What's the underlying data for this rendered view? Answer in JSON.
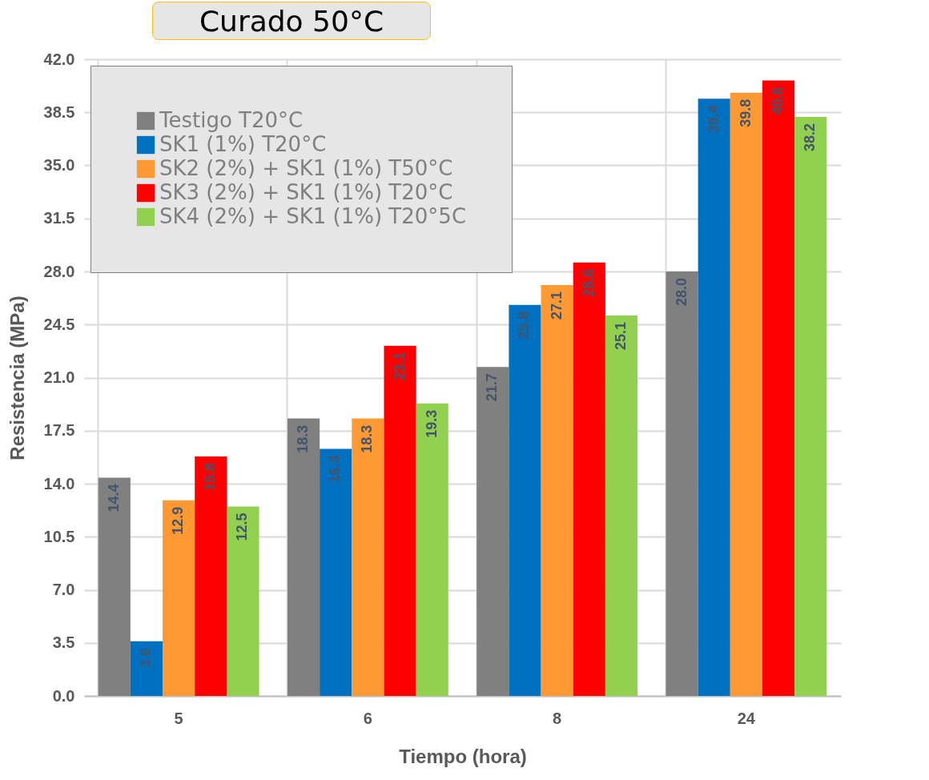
{
  "chart_data": {
    "type": "bar",
    "title": "Curado 50°C",
    "xlabel": "Tiempo (hora)",
    "ylabel": "Resistencia (MPa)",
    "categories": [
      "5",
      "6",
      "8",
      "24"
    ],
    "series": [
      {
        "name": "Testigo T20°C",
        "color": "#808080",
        "values": [
          14.4,
          18.3,
          21.7,
          28.0
        ],
        "value_labels": [
          "14.4",
          "18.3",
          "21.7",
          "28.0"
        ]
      },
      {
        "name": "SK1 (1%) T20°C",
        "color": "#0070c0",
        "values": [
          3.6,
          16.3,
          25.8,
          39.4
        ],
        "value_labels": [
          "3.6",
          "16.3",
          "25.8",
          "39.4"
        ]
      },
      {
        "name": "SK2 (2%) + SK1 (1%) T50°C",
        "color": "#ff9933",
        "values": [
          12.9,
          18.3,
          27.1,
          39.8
        ],
        "value_labels": [
          "12.9",
          "18.3",
          "27.1",
          "39.8"
        ]
      },
      {
        "name": "SK3 (2%) + SK1 (1%) T20°C",
        "color": "#ff0000",
        "values": [
          15.8,
          23.1,
          28.6,
          40.6
        ],
        "value_labels": [
          "15.8",
          "23.1",
          "28.6",
          "40.6"
        ]
      },
      {
        "name": "SK4 (2%) + SK1 (1%) T20°5C",
        "color": "#92d050",
        "values": [
          12.5,
          19.3,
          25.1,
          38.2
        ],
        "value_labels": [
          "12.5",
          "19.3",
          "25.1",
          "38.2"
        ]
      }
    ],
    "ylim": [
      0,
      42
    ],
    "yticks": [
      {
        "value": 0,
        "label": "0.0"
      },
      {
        "value": 3.5,
        "label": "3.5"
      },
      {
        "value": 7,
        "label": "7.0"
      },
      {
        "value": 10.5,
        "label": "10.5"
      },
      {
        "value": 14,
        "label": "14.0"
      },
      {
        "value": 17.5,
        "label": "17.5"
      },
      {
        "value": 21,
        "label": "21.0"
      },
      {
        "value": 24.5,
        "label": "24.5"
      },
      {
        "value": 28,
        "label": "28.0"
      },
      {
        "value": 31.5,
        "label": "31.5"
      },
      {
        "value": 35,
        "label": "35.0"
      },
      {
        "value": 38.5,
        "label": "38.5"
      },
      {
        "value": 42,
        "label": "42.0"
      }
    ],
    "grid": true,
    "legend": "top left"
  }
}
